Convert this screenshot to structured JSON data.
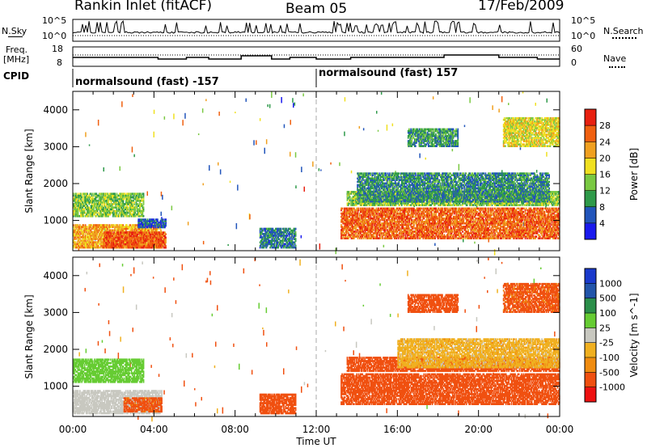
{
  "header": {
    "station": "Rankin Inlet (fitACF)",
    "beam": "Beam 05",
    "date": "17/Feb/2009"
  },
  "panels": {
    "nsky": {
      "label": "N.Sky",
      "right_label": "N.Search",
      "left_ticks": [
        "10^5",
        "10^0"
      ],
      "right_ticks": [
        "10^5",
        "10^0"
      ]
    },
    "freq": {
      "label_line1": "Freq.",
      "label_line2": "[MHz]",
      "right_label": "Nave",
      "left_ticks": [
        "18",
        "8"
      ],
      "right_ticks": [
        "60",
        "0"
      ]
    },
    "cpid": {
      "label": "CPID",
      "segment1": "normalsound (fast) -157",
      "segment2": "normalsound (fast) 157"
    }
  },
  "colors": {
    "power_scale": [
      "#1a1aee",
      "#2255bb",
      "#2f9a4a",
      "#7ac943",
      "#f0e020",
      "#f0a020",
      "#f06010",
      "#e82010"
    ],
    "velocity_scale": [
      "#ee1111",
      "#f05010",
      "#f08c10",
      "#f0b020",
      "#c8c8c0",
      "#66cc33",
      "#2b8f4a",
      "#2255aa",
      "#1a3acc"
    ]
  },
  "chart_data": [
    {
      "type": "heatmap",
      "title": "Power",
      "ylabel": "Slant Range [km]",
      "xlabel": "Time UT",
      "x_ticks": [
        "00:00",
        "04:00",
        "08:00",
        "12:00",
        "16:00",
        "20:00",
        "00:00"
      ],
      "y_ticks": [
        1000,
        2000,
        3000,
        4000
      ],
      "ylim": [
        180,
        4500
      ],
      "xlim_hours": [
        0,
        24
      ],
      "colorbar_label": "Power [dB]",
      "colorbar_ticks": [
        4,
        8,
        12,
        16,
        20,
        24,
        28
      ],
      "colorbar_range": [
        0,
        32
      ],
      "regions": [
        {
          "t": [
            0.0,
            3.5
          ],
          "range_km": [
            1100,
            1750
          ],
          "value": 14
        },
        {
          "t": [
            0.0,
            4.4
          ],
          "range_km": [
            250,
            900
          ],
          "value": 22
        },
        {
          "t": [
            1.5,
            4.6
          ],
          "range_km": [
            250,
            700
          ],
          "value": 27
        },
        {
          "t": [
            3.2,
            4.6
          ],
          "range_km": [
            800,
            1050
          ],
          "value": 6
        },
        {
          "t": [
            9.2,
            11.0
          ],
          "range_km": [
            250,
            800
          ],
          "value": 8
        },
        {
          "t": [
            13.2,
            24.0
          ],
          "range_km": [
            500,
            1350
          ],
          "value": 26
        },
        {
          "t": [
            13.5,
            24.0
          ],
          "range_km": [
            1400,
            1800
          ],
          "value": 14
        },
        {
          "t": [
            14.0,
            23.5
          ],
          "range_km": [
            1500,
            2300
          ],
          "value": 9
        },
        {
          "t": [
            16.5,
            19.0
          ],
          "range_km": [
            3000,
            3500
          ],
          "value": 10
        },
        {
          "t": [
            21.2,
            24.0
          ],
          "range_km": [
            3000,
            3800
          ],
          "value": 18
        }
      ]
    },
    {
      "type": "heatmap",
      "title": "Velocity",
      "ylabel": "Slant Range [km]",
      "xlabel": "Time UT",
      "x_ticks": [
        "00:00",
        "04:00",
        "08:00",
        "12:00",
        "16:00",
        "20:00",
        "00:00"
      ],
      "y_ticks": [
        1000,
        2000,
        3000,
        4000
      ],
      "ylim": [
        180,
        4500
      ],
      "xlim_hours": [
        0,
        24
      ],
      "colorbar_label": "Velocity [m s^-1]",
      "colorbar_ticks": [
        "1000",
        "500",
        "100",
        "25",
        "-25",
        "-100",
        "-500",
        "-1000"
      ],
      "regions": [
        {
          "t": [
            0.0,
            3.5
          ],
          "range_km": [
            1100,
            1750
          ],
          "value": 300
        },
        {
          "t": [
            0.0,
            4.4
          ],
          "range_km": [
            250,
            900
          ],
          "value": 60
        },
        {
          "t": [
            2.5,
            4.4
          ],
          "range_km": [
            300,
            700
          ],
          "value": -150
        },
        {
          "t": [
            9.2,
            11.0
          ],
          "range_km": [
            250,
            800
          ],
          "value": -200
        },
        {
          "t": [
            13.2,
            24.0
          ],
          "range_km": [
            500,
            1350
          ],
          "value": -300
        },
        {
          "t": [
            13.5,
            24.0
          ],
          "range_km": [
            1400,
            1800
          ],
          "value": -200
        },
        {
          "t": [
            16.0,
            24.0
          ],
          "range_km": [
            1500,
            2300
          ],
          "value": 0
        },
        {
          "t": [
            16.5,
            19.0
          ],
          "range_km": [
            3000,
            3500
          ],
          "value": -200
        },
        {
          "t": [
            21.2,
            24.0
          ],
          "range_km": [
            3000,
            3800
          ],
          "value": -150
        }
      ]
    }
  ]
}
